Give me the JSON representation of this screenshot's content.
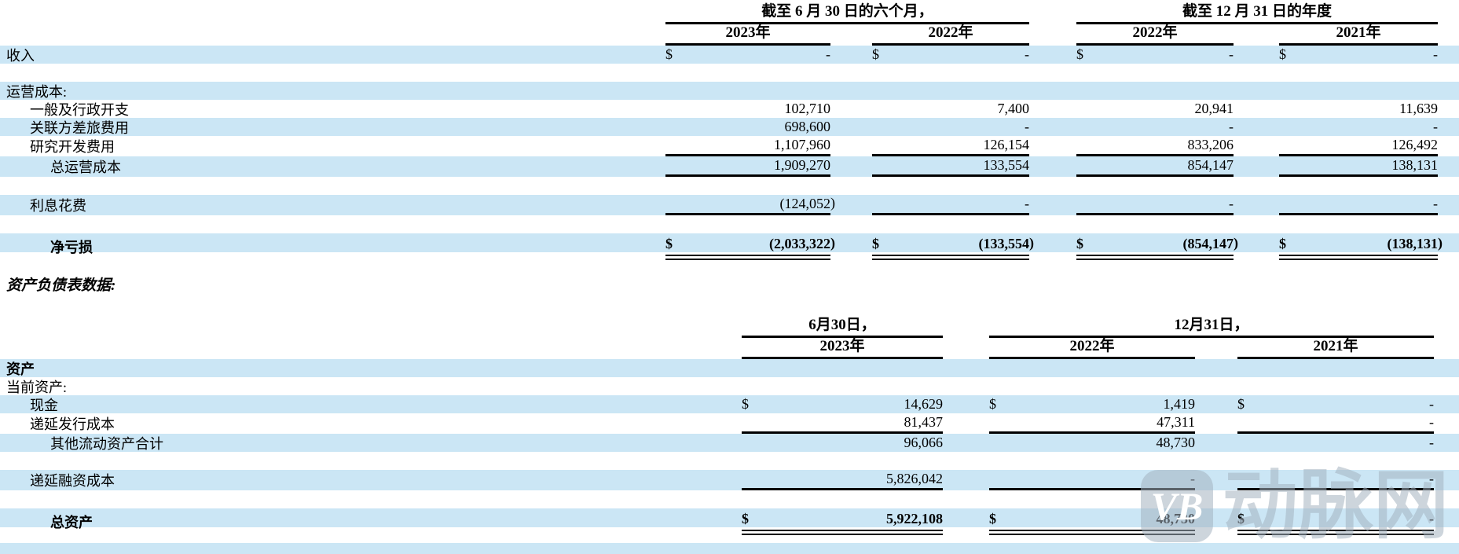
{
  "colors": {
    "highlight": "#cbe6f5",
    "rule": "#000000",
    "watermark": "rgba(164,178,192,0.55)"
  },
  "section_title": "资产负债表数据:",
  "income_statement": {
    "group_headers": [
      {
        "label": "截至 6 月 30 日的六个月，"
      },
      {
        "label": "截至 12 月 31 日的年度"
      }
    ],
    "column_headers": [
      "2023年",
      "2022年",
      "2022年",
      "2021年"
    ],
    "rows": [
      {
        "label": "收入",
        "indent": 0,
        "highlight": true,
        "cells": [
          {
            "cur": "$",
            "val": "-"
          },
          {
            "cur": "$",
            "val": "-"
          },
          {
            "cur": "$",
            "val": "-"
          },
          {
            "cur": "$",
            "val": "-"
          }
        ]
      },
      {
        "spacer": true
      },
      {
        "label": "运营成本:",
        "indent": 0,
        "highlight": true,
        "cells": []
      },
      {
        "label": "一般及行政开支",
        "indent": 1,
        "cells": [
          {
            "val": "102,710"
          },
          {
            "val": "7,400"
          },
          {
            "val": "20,941"
          },
          {
            "val": "11,639"
          }
        ]
      },
      {
        "label": "关联方差旅费用",
        "indent": 1,
        "highlight": true,
        "cells": [
          {
            "val": "698,600"
          },
          {
            "val": "-"
          },
          {
            "val": "-"
          },
          {
            "val": "-"
          }
        ]
      },
      {
        "label": "研究开发费用",
        "indent": 1,
        "rule": "single",
        "cells": [
          {
            "val": "1,107,960"
          },
          {
            "val": "126,154"
          },
          {
            "val": "833,206"
          },
          {
            "val": "126,492"
          }
        ]
      },
      {
        "label": "总运营成本",
        "indent": 2,
        "highlight": true,
        "rule": "single",
        "cells": [
          {
            "val": "1,909,270"
          },
          {
            "val": "133,554"
          },
          {
            "val": "854,147"
          },
          {
            "val": "138,131"
          }
        ]
      },
      {
        "spacer": true
      },
      {
        "label": "利息花费",
        "indent": 1,
        "highlight": true,
        "rule": "single",
        "cells": [
          {
            "val": "(124,052)"
          },
          {
            "val": "-"
          },
          {
            "val": "-"
          },
          {
            "val": "-"
          }
        ]
      },
      {
        "spacer": true
      },
      {
        "label": "净亏损",
        "indent": 2,
        "bold": true,
        "highlight": true,
        "rule": "double",
        "cells": [
          {
            "cur": "$",
            "val": "(2,033,322)"
          },
          {
            "cur": "$",
            "val": "(133,554)"
          },
          {
            "cur": "$",
            "val": "(854,147)"
          },
          {
            "cur": "$",
            "val": "(138,131)"
          }
        ]
      }
    ]
  },
  "balance_sheet": {
    "group_headers": [
      {
        "label": "6月30日，"
      },
      {
        "label": "12月31日，"
      }
    ],
    "column_headers": [
      "2023年",
      "2022年",
      "2021年"
    ],
    "rows": [
      {
        "label": "资产",
        "indent": 0,
        "bold": true,
        "highlight": true,
        "cells": []
      },
      {
        "label": "当前资产:",
        "indent": 0,
        "cells": []
      },
      {
        "label": "现金",
        "indent": 1,
        "highlight": true,
        "cells": [
          {
            "cur": "$",
            "val": "14,629"
          },
          {
            "cur": "$",
            "val": "1,419"
          },
          {
            "cur": "$",
            "val": "-"
          }
        ]
      },
      {
        "label": "递延发行成本",
        "indent": 1,
        "rule": "single",
        "cells": [
          {
            "val": "81,437"
          },
          {
            "val": "47,311"
          },
          {
            "val": "-"
          }
        ]
      },
      {
        "label": "其他流动资产合计",
        "indent": 2,
        "highlight": true,
        "cells": [
          {
            "val": "96,066"
          },
          {
            "val": "48,730"
          },
          {
            "val": "-"
          }
        ]
      },
      {
        "spacer": true
      },
      {
        "label": "递延融资成本",
        "indent": 1,
        "highlight": true,
        "rule": "single",
        "cells": [
          {
            "val": "5,826,042"
          },
          {
            "val": "-"
          },
          {
            "val": "-"
          }
        ]
      },
      {
        "spacer": true
      },
      {
        "label": "总资产",
        "indent": 2,
        "bold": true,
        "highlight": true,
        "rule": "double",
        "cells": [
          {
            "cur": "$",
            "val": "5,922,108"
          },
          {
            "cur": "$",
            "val": "48,730"
          },
          {
            "cur": "$",
            "val": "-"
          }
        ]
      }
    ]
  },
  "watermark": {
    "logo": "VB",
    "text": "动脉网"
  }
}
